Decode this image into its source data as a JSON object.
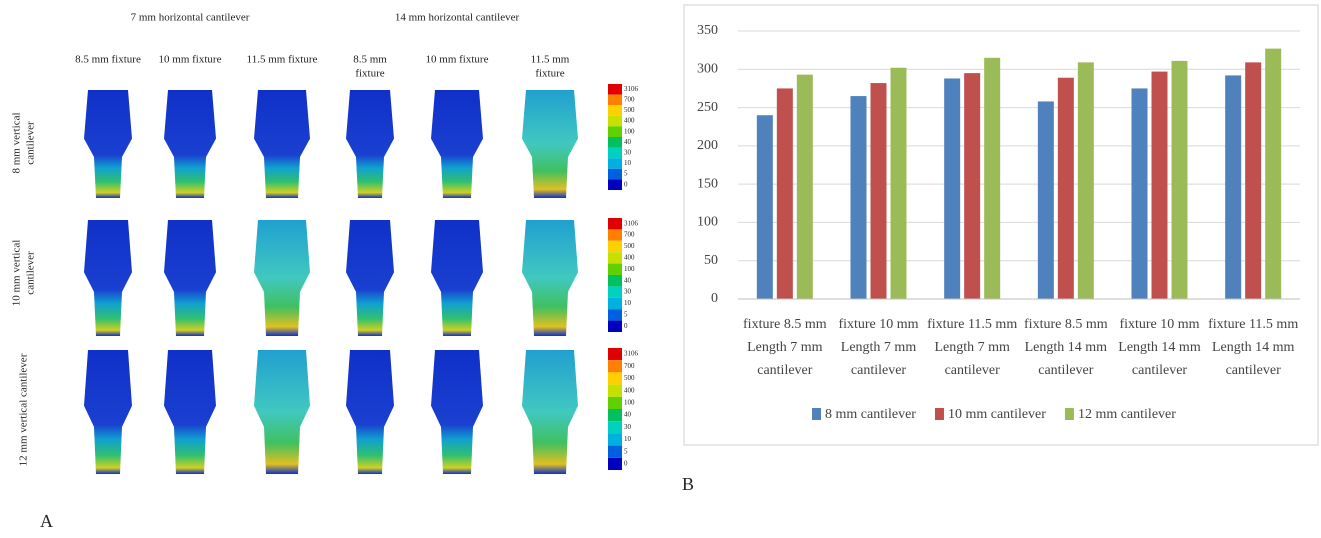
{
  "figure_a": {
    "panel_label": "A",
    "headers": [
      "7 mm horizontal cantilever",
      "14 mm horizontal cantilever"
    ],
    "columns": [
      [
        "8.5 mm fixture"
      ],
      [
        "10 mm fixture"
      ],
      [
        "11.5 mm fixture"
      ],
      [
        "8.5 mm",
        "fixture"
      ],
      [
        "10 mm fixture"
      ],
      [
        "11.5 mm",
        "fixture"
      ]
    ],
    "rows": [
      [
        "8 mm vertical",
        "cantilever"
      ],
      [
        "10 mm vertical",
        "cantilever"
      ],
      [
        "12 mm vertical cantilever"
      ]
    ],
    "scale_labels": [
      "3106",
      "700",
      "500",
      "400",
      "100",
      "40",
      "30",
      "10",
      "5",
      "0"
    ]
  },
  "chart_data": {
    "type": "bar",
    "panel_label": "B",
    "categories": [
      [
        "fixture 8.5 mm",
        "Length 7 mm",
        "cantilever"
      ],
      [
        "fixture 10 mm",
        "Length 7 mm",
        "cantilever"
      ],
      [
        "fixture 11.5 mm",
        "Length 7 mm",
        "cantilever"
      ],
      [
        "fixture 8.5 mm",
        "Length 14 mm",
        "cantilever"
      ],
      [
        "fixture 10 mm",
        "Length 14 mm",
        "cantilever"
      ],
      [
        "fixture 11.5 mm",
        "Length 14 mm",
        "cantilever"
      ]
    ],
    "series": [
      {
        "name": "8 mm cantilever",
        "color": "#4f81bd",
        "values": [
          240,
          265,
          288,
          258,
          275,
          292
        ]
      },
      {
        "name": "10 mm cantilever",
        "color": "#c0504d",
        "values": [
          275,
          282,
          295,
          289,
          297,
          309
        ]
      },
      {
        "name": "12 mm cantilever",
        "color": "#9bbb59",
        "values": [
          293,
          302,
          315,
          309,
          311,
          327
        ]
      }
    ],
    "ylim": [
      0,
      350
    ],
    "yticks": [
      0,
      50,
      100,
      150,
      200,
      250,
      300,
      350
    ],
    "grid": true,
    "legend": "bottom"
  }
}
